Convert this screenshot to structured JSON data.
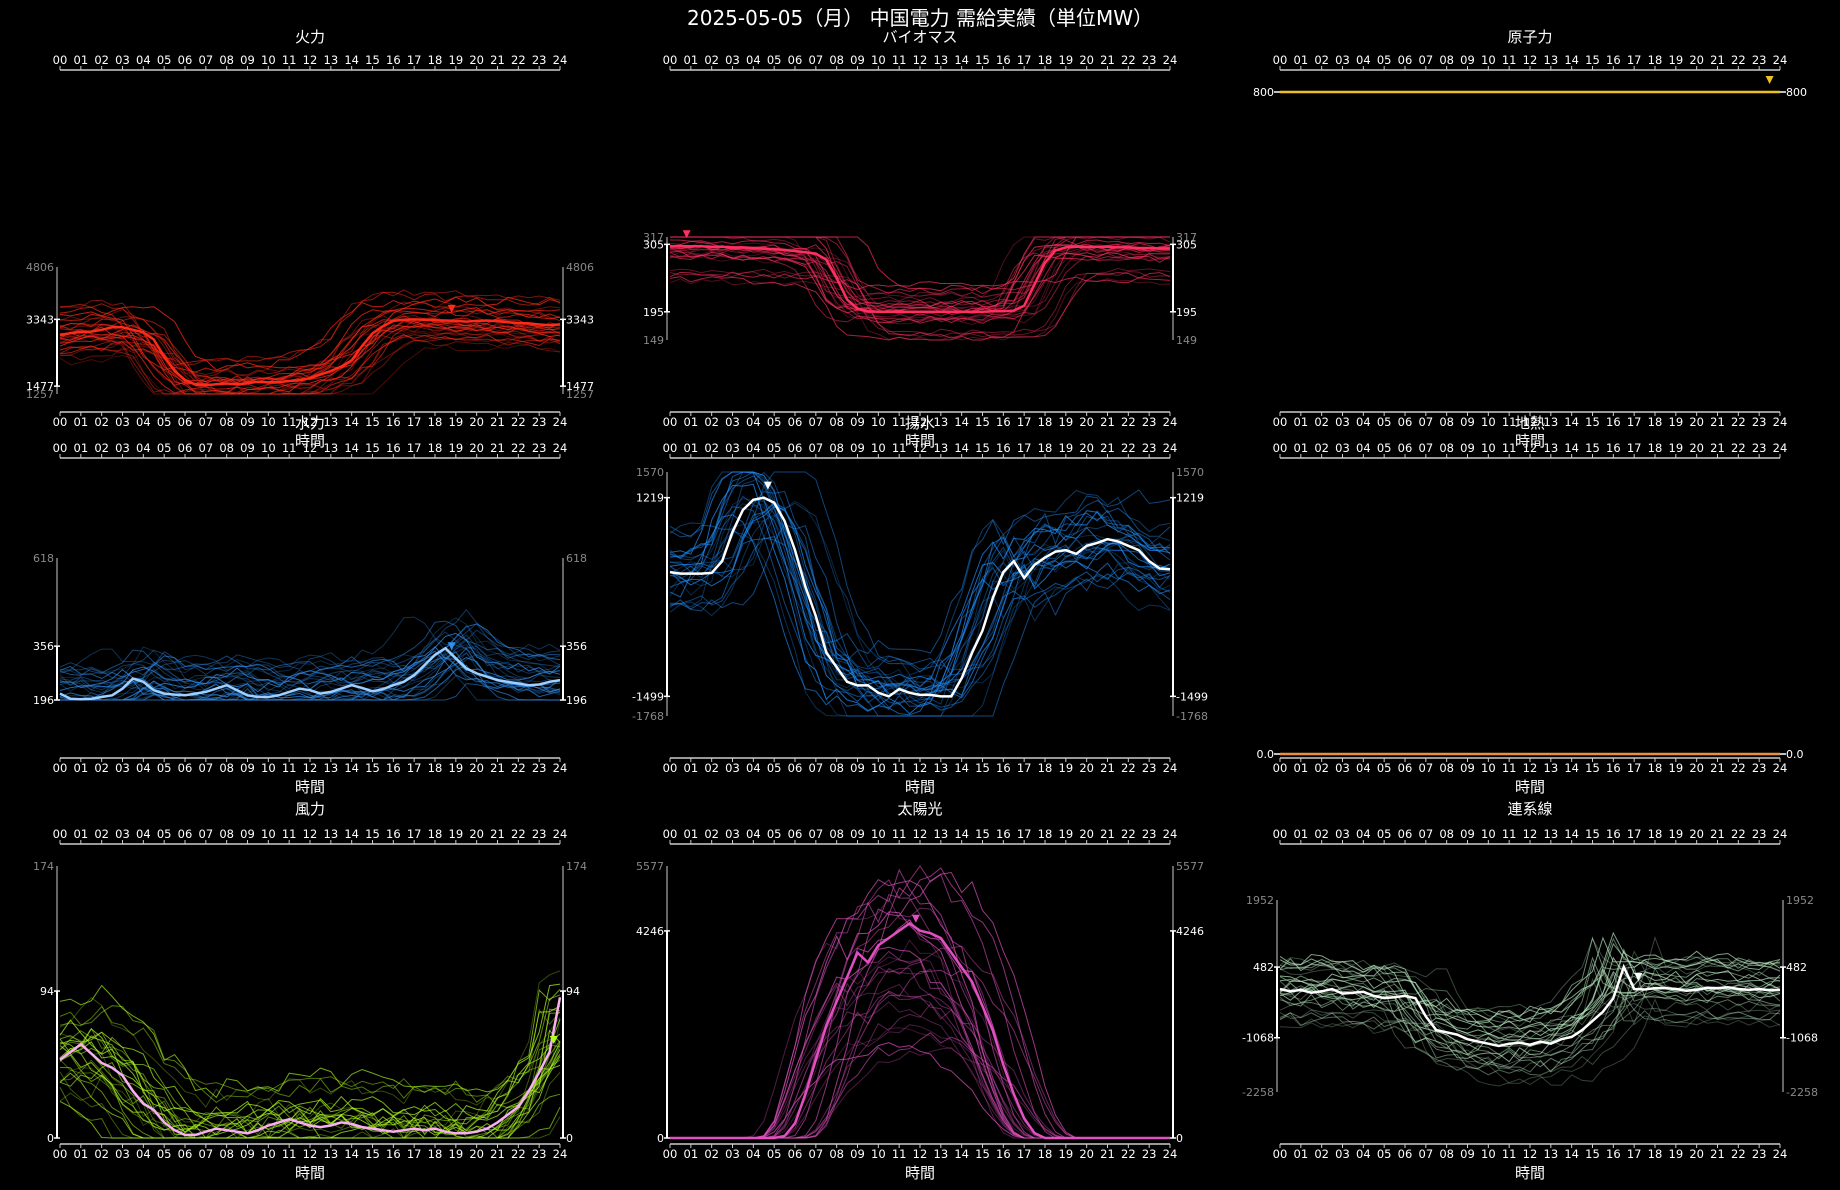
{
  "title": "2025-05-05（月） 中国電力 需給実績（単位MW）",
  "hour_ticks": [
    "00",
    "01",
    "02",
    "03",
    "04",
    "05",
    "06",
    "07",
    "08",
    "09",
    "10",
    "11",
    "12",
    "13",
    "14",
    "15",
    "16",
    "17",
    "18",
    "19",
    "20",
    "21",
    "22",
    "23",
    "24"
  ],
  "xlabel": "時間",
  "chart_data": [
    {
      "type": "line",
      "title": "火力",
      "color": "#ff2a1a",
      "ylim": [
        1257,
        4806
      ],
      "ticks_outer": [
        4806,
        1257
      ],
      "ticks_inner": [
        3343,
        1477
      ],
      "marker_hour": 18.8,
      "bold_series": [
        2900,
        2960,
        2990,
        3000,
        3050,
        3120,
        3120,
        3050,
        2980,
        2780,
        2300,
        1900,
        1650,
        1520,
        1500,
        1530,
        1550,
        1530,
        1560,
        1600,
        1580,
        1590,
        1620,
        1640,
        1700,
        1800,
        1900,
        2020,
        2200,
        2600,
        2950,
        3150,
        3300,
        3330,
        3343,
        3330,
        3320,
        3310,
        3300,
        3280,
        3300,
        3310,
        3290,
        3260,
        3240,
        3230,
        3200,
        3180,
        3200
      ],
      "band": {
        "low": [
          2600,
          1350
        ],
        "high": [
          3800,
          4200
        ]
      }
    },
    {
      "type": "line",
      "title": "バイオマス",
      "color": "#ff3060",
      "ylim": [
        149,
        317
      ],
      "ticks_outer": [
        317,
        149
      ],
      "ticks_inner": [
        305,
        195
      ],
      "marker_hour": 0.8,
      "bold_series": [
        302,
        302,
        302,
        302,
        301,
        301,
        300,
        300,
        299,
        298,
        297,
        296,
        294,
        292,
        290,
        280,
        250,
        215,
        200,
        196,
        195,
        195,
        195,
        195,
        195,
        195,
        195,
        195,
        195,
        195,
        195,
        196,
        196,
        197,
        205,
        240,
        275,
        295,
        300,
        301,
        301,
        301,
        301,
        300,
        300,
        299,
        299,
        298,
        298
      ],
      "band": {
        "low": [
          300,
          195
        ],
        "high": [
          308,
          305
        ]
      }
    },
    {
      "type": "line",
      "title": "原子力",
      "color": "#f0c020",
      "ylim": [
        799,
        801
      ],
      "ticks_outer": [],
      "ticks_inner": [
        800
      ],
      "marker_hour": 23.5,
      "bold_series": [
        800,
        800,
        800,
        800,
        800,
        800,
        800,
        800,
        800,
        800,
        800,
        800,
        800,
        800,
        800,
        800,
        800,
        800,
        800,
        800,
        800,
        800,
        800,
        800,
        800,
        800,
        800,
        800,
        800,
        800,
        800,
        800,
        800,
        800,
        800,
        800,
        800,
        800,
        800,
        800,
        800,
        800,
        800,
        800,
        800,
        800,
        800,
        800,
        800
      ],
      "band": {
        "low": [
          800,
          800
        ],
        "high": [
          800,
          800
        ]
      }
    },
    {
      "type": "line",
      "title": "水力",
      "color": "#3090f0",
      "ylim": [
        196,
        618
      ],
      "ticks_outer": [
        618
      ],
      "ticks_inner": [
        356,
        196
      ],
      "marker_hour": 18.8,
      "bold_series": [
        215,
        200,
        198,
        200,
        205,
        210,
        230,
        260,
        250,
        225,
        215,
        212,
        210,
        215,
        220,
        230,
        240,
        225,
        210,
        205,
        205,
        210,
        220,
        230,
        225,
        215,
        220,
        230,
        240,
        232,
        222,
        228,
        240,
        250,
        270,
        300,
        330,
        350,
        320,
        290,
        275,
        265,
        255,
        250,
        245,
        240,
        242,
        250,
        255
      ],
      "band": {
        "low": [
          270,
          280
        ],
        "high": [
          470,
          500
        ]
      }
    },
    {
      "type": "line",
      "title": "揚水",
      "color": "#2090ff",
      "ylim": [
        -1768,
        1570
      ],
      "ticks_outer": [
        1570,
        -1768
      ],
      "ticks_inner": [
        1219,
        -1499
      ],
      "marker_hour": 4.7,
      "bold_series": [
        200,
        180,
        180,
        180,
        190,
        350,
        750,
        1050,
        1190,
        1219,
        1150,
        900,
        500,
        0,
        -400,
        -900,
        -1100,
        -1300,
        -1350,
        -1350,
        -1450,
        -1500,
        -1400,
        -1450,
        -1480,
        -1480,
        -1500,
        -1500,
        -1250,
        -900,
        -600,
        -150,
        200,
        350,
        120,
        300,
        400,
        480,
        500,
        450,
        560,
        600,
        650,
        620,
        560,
        500,
        350,
        250,
        240
      ],
      "band": {
        "low": [
          100,
          -1500
        ],
        "high": [
          300,
          400
        ]
      }
    },
    {
      "type": "line",
      "title": "地熱",
      "color": "#e89040",
      "ylim": [
        -1,
        1
      ],
      "ticks_outer": [],
      "ticks_inner": [
        0
      ],
      "marker_hour": null,
      "bold_series": [
        0,
        0,
        0,
        0,
        0,
        0,
        0,
        0,
        0,
        0,
        0,
        0,
        0,
        0,
        0,
        0,
        0,
        0,
        0,
        0,
        0,
        0,
        0,
        0,
        0,
        0,
        0,
        0,
        0,
        0,
        0,
        0,
        0,
        0,
        0,
        0,
        0,
        0,
        0,
        0,
        0,
        0,
        0,
        0,
        0,
        0,
        0,
        0,
        0
      ],
      "band": {
        "low": [
          0,
          0
        ],
        "high": [
          0,
          0
        ]
      }
    },
    {
      "type": "line",
      "title": "風力",
      "color": "#b0ff20",
      "ylim": [
        0,
        174
      ],
      "ticks_outer": [
        174
      ],
      "ticks_inner": [
        94,
        0
      ],
      "marker_hour": 23.7,
      "bold_series": [
        50,
        55,
        60,
        54,
        48,
        45,
        40,
        30,
        22,
        18,
        10,
        5,
        2,
        2,
        4,
        6,
        5,
        4,
        3,
        5,
        8,
        10,
        12,
        10,
        8,
        7,
        8,
        10,
        9,
        7,
        6,
        5,
        4,
        5,
        6,
        5,
        6,
        4,
        3,
        3,
        4,
        6,
        10,
        15,
        20,
        30,
        42,
        55,
        90
      ],
      "band": {
        "low": [
          10,
          0
        ],
        "high": [
          90,
          120
        ]
      }
    },
    {
      "type": "line",
      "title": "太陽光",
      "color": "#e050c0",
      "ylim": [
        0,
        5577
      ],
      "ticks_outer": [
        5577
      ],
      "ticks_inner": [
        4246,
        0
      ],
      "marker_hour": 11.8,
      "bold_series": [
        0,
        0,
        0,
        0,
        0,
        0,
        0,
        0,
        0,
        0,
        0,
        40,
        300,
        900,
        1600,
        2300,
        2800,
        3300,
        3800,
        3600,
        3950,
        4100,
        4250,
        4400,
        4250,
        4200,
        4100,
        3800,
        3500,
        3200,
        2700,
        2200,
        1500,
        900,
        400,
        100,
        0,
        0,
        0,
        0,
        0,
        0,
        0,
        0,
        0,
        0,
        0,
        0,
        0
      ],
      "band": {
        "low": [
          0,
          0
        ],
        "high": [
          0,
          0
        ]
      }
    },
    {
      "type": "line",
      "title": "連系線",
      "color": "#b8e8c0",
      "ylim": [
        -2258,
        1952
      ],
      "ticks_outer": [
        1952,
        -2258
      ],
      "ticks_inner": [
        482,
        -1068
      ],
      "marker_hour": 17.2,
      "bold_series": [
        0,
        -50,
        -20,
        -80,
        -50,
        0,
        -100,
        -80,
        -60,
        -150,
        -200,
        -180,
        -150,
        -200,
        -600,
        -900,
        -950,
        -1000,
        -1100,
        -1150,
        -1200,
        -1250,
        -1200,
        -1180,
        -1220,
        -1150,
        -1200,
        -1100,
        -1050,
        -900,
        -700,
        -500,
        -200,
        482,
        0,
        -10,
        20,
        20,
        0,
        -40,
        -20,
        30,
        20,
        40,
        0,
        -20,
        0,
        -30,
        -20
      ],
      "band": {
        "low": [
          -200,
          -1500
        ],
        "high": [
          300,
          100
        ]
      }
    }
  ]
}
